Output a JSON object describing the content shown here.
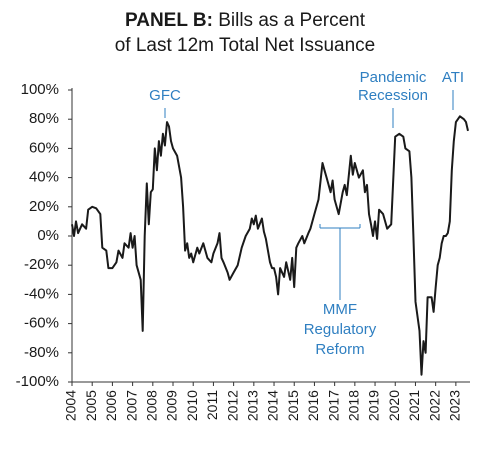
{
  "chart_data": {
    "type": "line",
    "title_lead": "PANEL B:",
    "title": "Bills as a Percent",
    "subtitle": "of Last 12m Total Net Issuance",
    "color": "#1a1a1a",
    "annotation_color": "#2f7fc1",
    "annotations": [
      {
        "lines": [
          "GFC"
        ]
      },
      {
        "lines": [
          "Pandemic",
          "Recession"
        ]
      },
      {
        "lines": [
          "ATI"
        ]
      },
      {
        "lines": [
          "MMF",
          "Regulatory",
          "Reform"
        ]
      }
    ],
    "xlim": [
      2004,
      2023.7
    ],
    "xticks": [
      2004,
      2005,
      2006,
      2007,
      2008,
      2009,
      2010,
      2011,
      2012,
      2013,
      2014,
      2015,
      2016,
      2017,
      2018,
      2019,
      2020,
      2021,
      2022,
      2023
    ],
    "ylim": [
      -100,
      100
    ],
    "yticks": [
      {
        "value": -100,
        "label": "-100%"
      },
      {
        "value": -80,
        "label": "-80%"
      },
      {
        "value": -60,
        "label": "-60%"
      },
      {
        "value": -40,
        "label": "-40%"
      },
      {
        "value": -20,
        "label": "-20%"
      },
      {
        "value": 0,
        "label": "0%"
      },
      {
        "value": 20,
        "label": "20%"
      },
      {
        "value": 40,
        "label": "40%"
      },
      {
        "value": 60,
        "label": "60%"
      },
      {
        "value": 80,
        "label": "80%"
      },
      {
        "value": 100,
        "label": "100%"
      }
    ],
    "x": [
      2004.0,
      2004.1,
      2004.2,
      2004.3,
      2004.5,
      2004.7,
      2004.8,
      2005.0,
      2005.2,
      2005.4,
      2005.5,
      2005.7,
      2005.8,
      2006.0,
      2006.2,
      2006.3,
      2006.5,
      2006.6,
      2006.8,
      2006.9,
      2007.0,
      2007.1,
      2007.2,
      2007.4,
      2007.5,
      2007.6,
      2007.7,
      2007.8,
      2007.9,
      2008.0,
      2008.1,
      2008.2,
      2008.3,
      2008.4,
      2008.5,
      2008.6,
      2008.7,
      2008.8,
      2008.9,
      2009.0,
      2009.2,
      2009.4,
      2009.5,
      2009.6,
      2009.7,
      2009.8,
      2009.9,
      2010.0,
      2010.2,
      2010.3,
      2010.5,
      2010.7,
      2010.9,
      2011.0,
      2011.2,
      2011.3,
      2011.4,
      2011.5,
      2011.7,
      2011.8,
      2012.0,
      2012.2,
      2012.4,
      2012.6,
      2012.8,
      2012.9,
      2013.0,
      2013.1,
      2013.2,
      2013.4,
      2013.5,
      2013.6,
      2013.8,
      2013.9,
      2014.0,
      2014.1,
      2014.2,
      2014.3,
      2014.5,
      2014.6,
      2014.8,
      2014.9,
      2015.0,
      2015.1,
      2015.2,
      2015.4,
      2015.5,
      2015.7,
      2015.8,
      2016.0,
      2016.2,
      2016.4,
      2016.5,
      2016.6,
      2016.8,
      2016.9,
      2017.0,
      2017.2,
      2017.4,
      2017.5,
      2017.6,
      2017.8,
      2017.9,
      2018.0,
      2018.2,
      2018.4,
      2018.5,
      2018.6,
      2018.7,
      2018.8,
      2018.9,
      2019.0,
      2019.1,
      2019.2,
      2019.4,
      2019.6,
      2019.8,
      2020.0,
      2020.2,
      2020.4,
      2020.5,
      2020.7,
      2020.8,
      2020.9,
      2021.0,
      2021.2,
      2021.3,
      2021.4,
      2021.5,
      2021.6,
      2021.8,
      2021.9,
      2022.0,
      2022.1,
      2022.2,
      2022.3,
      2022.4,
      2022.5,
      2022.6,
      2022.7,
      2022.8,
      2022.9,
      2023.0,
      2023.2,
      2023.4,
      2023.5,
      2023.6
    ],
    "values": [
      8,
      0,
      10,
      2,
      8,
      5,
      18,
      20,
      19,
      15,
      -8,
      -10,
      -22,
      -22,
      -18,
      -10,
      -15,
      -5,
      -8,
      2,
      -8,
      0,
      -20,
      -30,
      -65,
      0,
      36,
      8,
      30,
      32,
      60,
      45,
      65,
      55,
      70,
      62,
      78,
      75,
      65,
      60,
      55,
      40,
      20,
      -10,
      -5,
      -15,
      -12,
      -18,
      -8,
      -12,
      -5,
      -15,
      -18,
      -12,
      -5,
      2,
      -15,
      -18,
      -25,
      -30,
      -25,
      -20,
      -8,
      0,
      5,
      12,
      8,
      14,
      5,
      12,
      3,
      -2,
      -18,
      -22,
      -22,
      -28,
      -40,
      -22,
      -28,
      -18,
      -30,
      -15,
      -35,
      -8,
      -5,
      0,
      -5,
      2,
      5,
      15,
      25,
      50,
      45,
      40,
      30,
      38,
      25,
      15,
      30,
      35,
      28,
      55,
      42,
      50,
      40,
      45,
      30,
      35,
      15,
      8,
      0,
      10,
      -2,
      18,
      15,
      5,
      8,
      68,
      70,
      68,
      60,
      58,
      40,
      0,
      -45,
      -65,
      -95,
      -72,
      -80,
      -42,
      -42,
      -52,
      -35,
      -20,
      -15,
      -5,
      0,
      0,
      2,
      10,
      45,
      65,
      78,
      82,
      80,
      78,
      72
    ]
  }
}
